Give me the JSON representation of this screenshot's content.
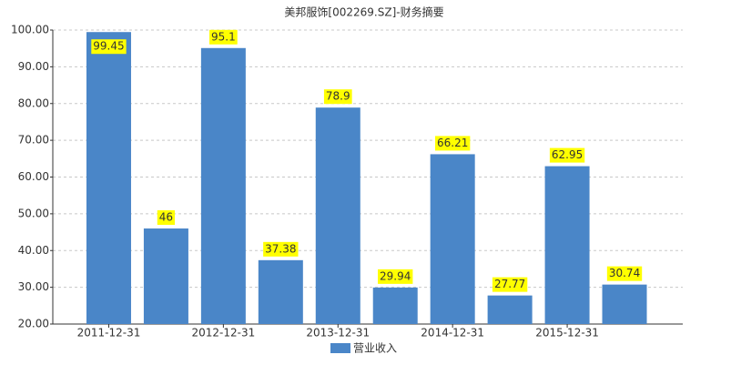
{
  "chart_data": {
    "type": "bar",
    "title": "美邦服饰[002269.SZ]-财务摘要",
    "categories": [
      "2011-12-31",
      null,
      "2012-12-31",
      null,
      "2013-12-31",
      null,
      "2014-12-31",
      null,
      "2015-12-31",
      null
    ],
    "series": [
      {
        "name": "营业收入",
        "color": "#4a86c8",
        "values": [
          99.45,
          46,
          95.1,
          37.38,
          78.9,
          29.94,
          66.21,
          27.77,
          62.95,
          30.74
        ]
      }
    ],
    "ylim": [
      20,
      100
    ],
    "yticks": [
      {
        "value": 20,
        "label": "20.00"
      },
      {
        "value": 30,
        "label": "30.00"
      },
      {
        "value": 40,
        "label": "40.00"
      },
      {
        "value": 50,
        "label": "50.00"
      },
      {
        "value": 60,
        "label": "60.00"
      },
      {
        "value": 70,
        "label": "70.00"
      },
      {
        "value": 80,
        "label": "80.00"
      },
      {
        "value": 90,
        "label": "90.00"
      },
      {
        "value": 100,
        "label": "100.00"
      }
    ],
    "grid": true,
    "legend": "bottom"
  }
}
